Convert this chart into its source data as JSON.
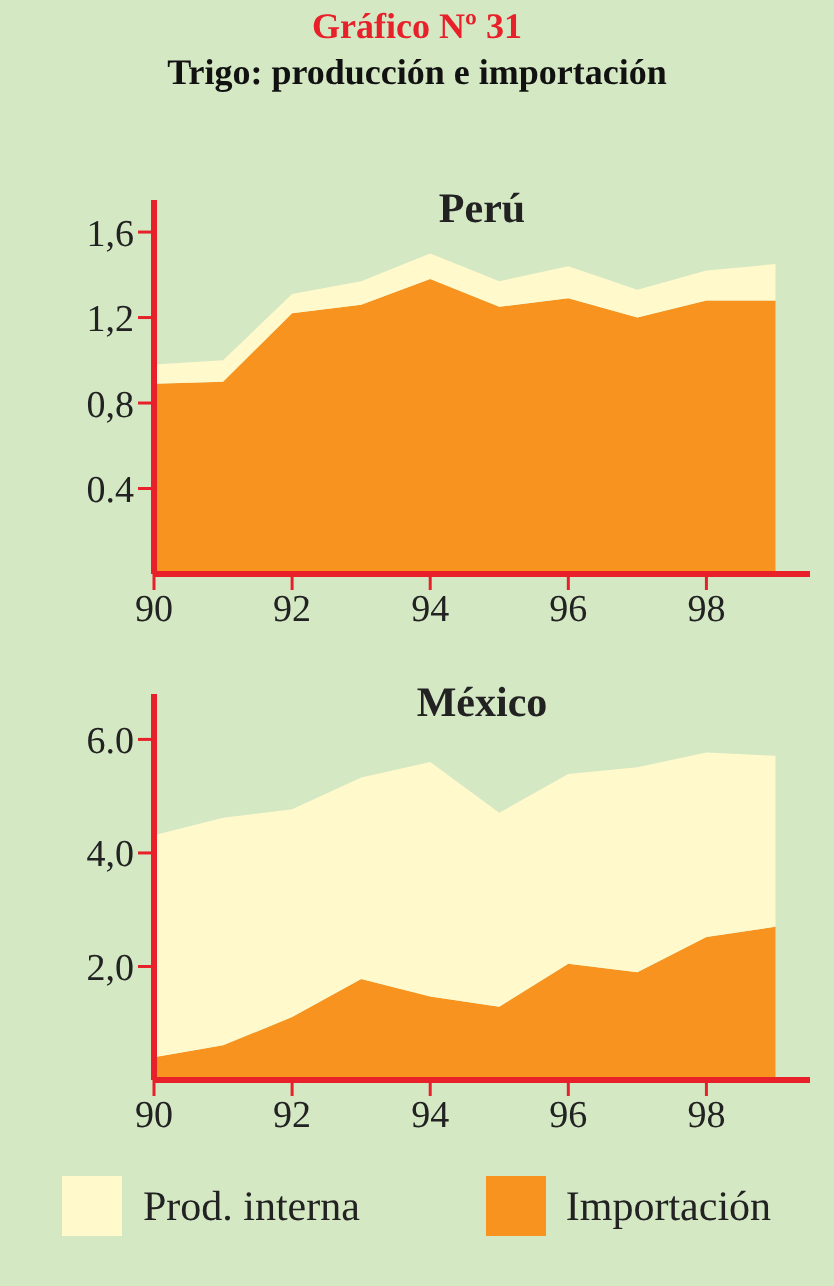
{
  "chart_data": [
    {
      "type": "area",
      "title": "Perú",
      "annotations": [
        "Gráfico Nº 31",
        "Trigo: producción e importación"
      ],
      "stacked": true,
      "x": [
        90,
        91,
        92,
        93,
        94,
        95,
        96,
        97,
        98,
        99
      ],
      "xlim": [
        90,
        99.5
      ],
      "xticks": [
        90,
        92,
        94,
        96,
        98
      ],
      "ylim": [
        0,
        1.75
      ],
      "yticks": [
        {
          "value": 0.4,
          "label": "0.4"
        },
        {
          "value": 0.8,
          "label": "0,8"
        },
        {
          "value": 1.2,
          "label": "1,2"
        },
        {
          "value": 1.6,
          "label": "1,6"
        }
      ],
      "grid": false,
      "legend": false,
      "series": [
        {
          "color": "#f7931e",
          "values": [
            0.89,
            0.9,
            1.22,
            1.26,
            1.38,
            1.25,
            1.29,
            1.2,
            1.28,
            1.28
          ]
        },
        {
          "color": "#fff9cc",
          "values": [
            0.09,
            0.1,
            0.09,
            0.11,
            0.12,
            0.12,
            0.15,
            0.13,
            0.14,
            0.17
          ]
        }
      ]
    },
    {
      "type": "area",
      "title": "México",
      "stacked": true,
      "x": [
        90,
        91,
        92,
        93,
        94,
        95,
        96,
        97,
        98,
        99
      ],
      "xlim": [
        90,
        99.5
      ],
      "xticks": [
        90,
        92,
        94,
        96,
        98
      ],
      "ylim": [
        0,
        6.8
      ],
      "yticks": [
        {
          "value": 2,
          "label": "2,0"
        },
        {
          "value": 4,
          "label": "4,0"
        },
        {
          "value": 6,
          "label": "6.0"
        }
      ],
      "grid": false,
      "legend": "bottom",
      "series": [
        {
          "name": "Importación",
          "color": "#f7931e",
          "values": [
            0.4,
            0.61,
            1.11,
            1.78,
            1.47,
            1.29,
            2.05,
            1.9,
            2.52,
            2.7
          ]
        },
        {
          "name": "Prod. interna",
          "color": "#fff9cc",
          "values": [
            3.91,
            4.01,
            3.66,
            3.55,
            4.13,
            3.42,
            3.34,
            3.61,
            3.25,
            3.01
          ]
        }
      ]
    }
  ]
}
